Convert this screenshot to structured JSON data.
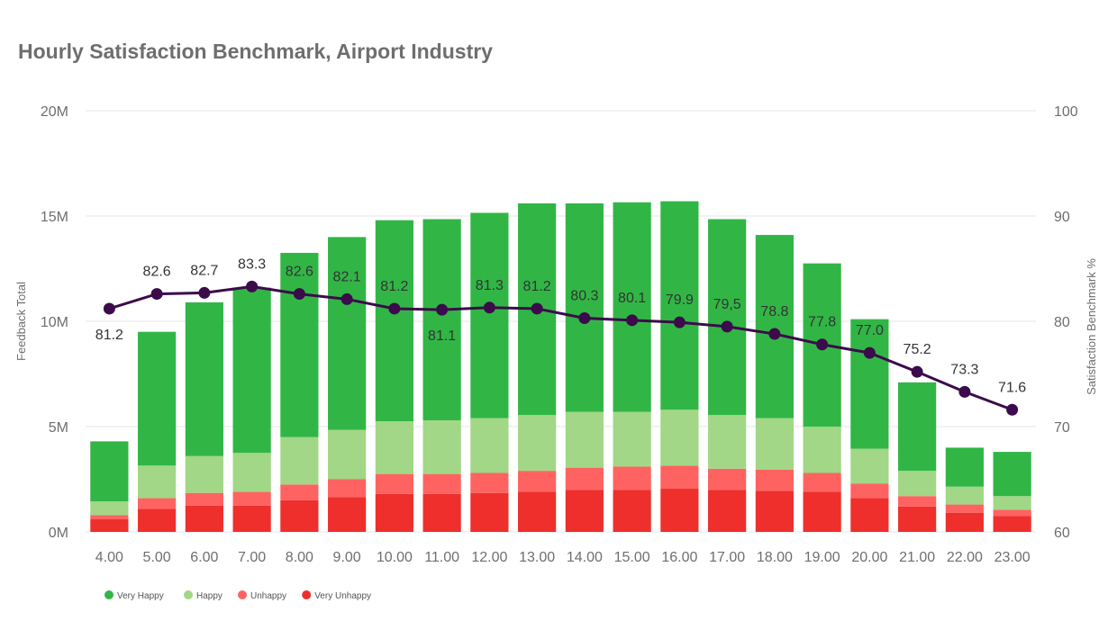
{
  "title": "Hourly Satisfaction Benchmark, Airport Industry",
  "chart_data": {
    "type": "bar",
    "stacked": true,
    "title": "Hourly Satisfaction Benchmark, Airport Industry",
    "categories": [
      "4.00",
      "5.00",
      "6.00",
      "7.00",
      "8.00",
      "9.00",
      "10.00",
      "11.00",
      "12.00",
      "13.00",
      "14.00",
      "15.00",
      "16.00",
      "17.00",
      "18.00",
      "19.00",
      "20.00",
      "21.00",
      "22.00",
      "23.00"
    ],
    "ylabel": "Feedback Total",
    "y2label": "Satisfaction Benchmark %",
    "ylim": [
      0,
      20000000
    ],
    "y2lim": [
      60,
      100
    ],
    "yticks": [
      "0M",
      "5M",
      "10M",
      "15M",
      "20M"
    ],
    "y2ticks": [
      "60",
      "70",
      "80",
      "90",
      "100"
    ],
    "grid": true,
    "legend_position": "bottom-left",
    "series": [
      {
        "name": "Very Unhappy",
        "color": "#ee2f2c",
        "values": [
          600000,
          1100000,
          1250000,
          1250000,
          1500000,
          1650000,
          1800000,
          1800000,
          1850000,
          1900000,
          2000000,
          2000000,
          2050000,
          2000000,
          1950000,
          1900000,
          1600000,
          1200000,
          900000,
          750000
        ]
      },
      {
        "name": "Unhappy",
        "color": "#fe6361",
        "values": [
          200000,
          500000,
          600000,
          650000,
          750000,
          850000,
          950000,
          950000,
          950000,
          1000000,
          1050000,
          1100000,
          1100000,
          1000000,
          1000000,
          900000,
          700000,
          500000,
          400000,
          300000
        ]
      },
      {
        "name": "Happy",
        "color": "#a1d786",
        "values": [
          650000,
          1550000,
          1750000,
          1850000,
          2250000,
          2350000,
          2500000,
          2550000,
          2600000,
          2650000,
          2650000,
          2600000,
          2650000,
          2550000,
          2450000,
          2200000,
          1650000,
          1200000,
          850000,
          650000
        ]
      },
      {
        "name": "Very Happy",
        "color": "#31b646",
        "values": [
          2850000,
          6350000,
          7300000,
          7850000,
          8750000,
          9150000,
          9550000,
          9550000,
          9750000,
          10050000,
          9900000,
          9950000,
          9900000,
          9300000,
          8700000,
          7750000,
          6150000,
          4200000,
          1850000,
          2100000
        ]
      }
    ],
    "line": {
      "name": "Satisfaction Benchmark %",
      "color": "#3c0b4b",
      "values": [
        81.2,
        82.6,
        82.7,
        83.3,
        82.6,
        82.1,
        81.2,
        81.1,
        81.3,
        81.2,
        80.3,
        80.1,
        79.9,
        79.5,
        78.8,
        77.8,
        77.0,
        75.2,
        73.3,
        71.6
      ],
      "labels": [
        "81.2",
        "82.6",
        "82.7",
        "83.3",
        "82.6",
        "82.1",
        "81.2",
        "81.1",
        "81.3",
        "81.2",
        "80.3",
        "80.1",
        "79.9",
        "79,5",
        "78.8",
        "77.8",
        "77.0",
        "75.2",
        "73.3",
        "71.6"
      ],
      "label_below": [
        true,
        false,
        false,
        false,
        false,
        false,
        false,
        true,
        false,
        false,
        false,
        false,
        false,
        false,
        false,
        false,
        false,
        false,
        false,
        false
      ]
    },
    "legend_order": [
      "Very Happy",
      "Happy",
      "Unhappy",
      "Very Unhappy"
    ]
  }
}
